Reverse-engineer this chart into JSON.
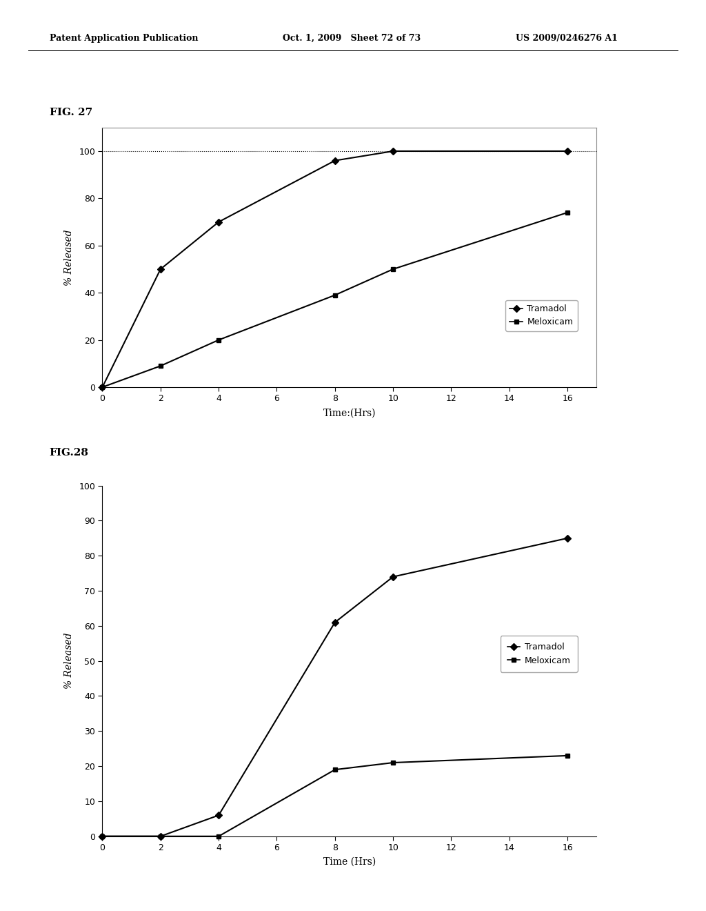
{
  "fig27": {
    "tramadol_x": [
      0,
      2,
      4,
      8,
      10,
      16
    ],
    "tramadol_y": [
      0,
      50,
      70,
      96,
      100,
      100
    ],
    "meloxicam_x": [
      0,
      2,
      4,
      8,
      10,
      16
    ],
    "meloxicam_y": [
      0,
      9,
      20,
      39,
      50,
      74
    ],
    "xlabel": "Time:(Hrs)",
    "ylabel": "% Released",
    "xlim": [
      0,
      17
    ],
    "ylim": [
      0,
      110
    ],
    "xticks": [
      0,
      2,
      4,
      6,
      8,
      10,
      12,
      14,
      16
    ],
    "yticks": [
      0,
      20,
      40,
      60,
      80,
      100
    ],
    "fig_label": "FIG. 27",
    "hline_y": 100,
    "legend_tramadol": "Tramadol",
    "legend_meloxicam": "Meloxicam"
  },
  "fig28": {
    "tramadol_x": [
      0,
      2,
      4,
      8,
      10,
      16
    ],
    "tramadol_y": [
      0,
      0,
      6,
      61,
      74,
      85
    ],
    "meloxicam_x": [
      0,
      2,
      4,
      8,
      10,
      16
    ],
    "meloxicam_y": [
      0,
      0,
      0,
      19,
      21,
      23
    ],
    "xlabel": "Time (Hrs)",
    "ylabel": "% Released",
    "xlim": [
      0,
      17
    ],
    "ylim": [
      0,
      100
    ],
    "xticks": [
      0,
      2,
      4,
      6,
      8,
      10,
      12,
      14,
      16
    ],
    "yticks": [
      0,
      10,
      20,
      30,
      40,
      50,
      60,
      70,
      80,
      90,
      100
    ],
    "fig_label": "FIG.28",
    "legend_tramadol": "Tramadol",
    "legend_meloxicam": "Meloxicam"
  },
  "header_left": "Patent Application Publication",
  "header_mid": "Oct. 1, 2009   Sheet 72 of 73",
  "header_right": "US 2009/0246276 A1",
  "bg_color": "#ffffff",
  "line_color": "#000000"
}
